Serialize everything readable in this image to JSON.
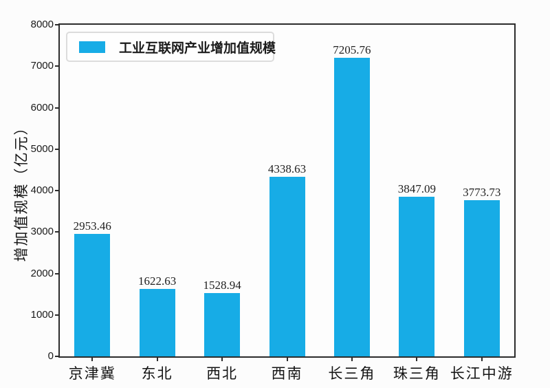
{
  "figure": {
    "background_color": "#fcfcfc",
    "axis_color": "#2b2b2b",
    "bar_color": "#17ace6"
  },
  "legend": {
    "label": "工业互联网产业增加值规模",
    "swatch_color": "#17ace6"
  },
  "chart_data": {
    "type": "bar",
    "title": "",
    "xlabel": "",
    "ylabel": "增加值规模（亿元）",
    "categories": [
      "京津冀",
      "东北",
      "西北",
      "西南",
      "长三角",
      "珠三角",
      "长江中游"
    ],
    "values": [
      2953.46,
      1622.63,
      1528.94,
      4338.63,
      7205.76,
      3847.09,
      3773.73
    ],
    "value_labels": [
      "2953.46",
      "1622.63",
      "1528.94",
      "4338.63",
      "7205.76",
      "3847.09",
      "3773.73"
    ],
    "ylim": [
      0,
      8000
    ],
    "yticks": [
      0,
      1000,
      2000,
      3000,
      4000,
      5000,
      6000,
      7000,
      8000
    ],
    "grid": false,
    "legend_entries": [
      "工业互联网产业增加值规模"
    ],
    "legend_position": "upper left",
    "bar_color": "#17ace6"
  }
}
